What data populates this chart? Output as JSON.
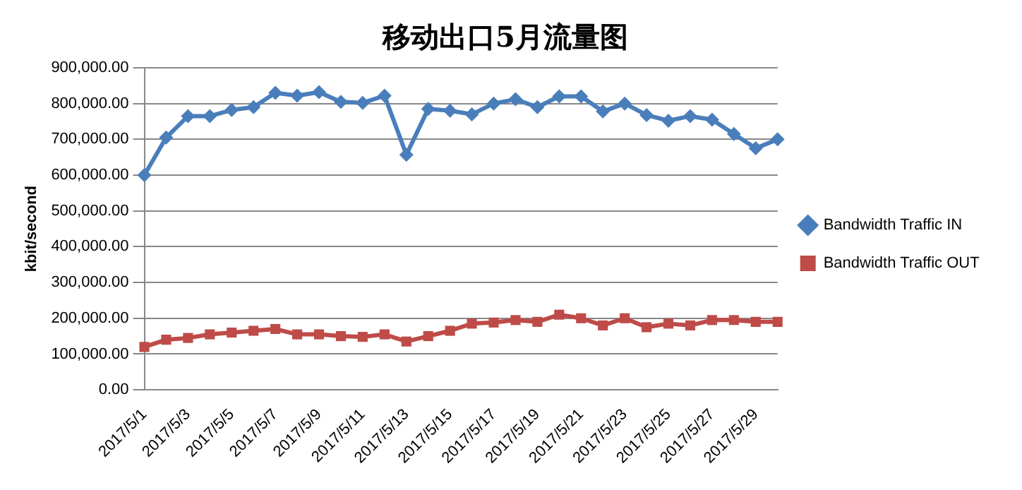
{
  "chart_data": {
    "type": "line",
    "title": "移动出口5月流量图",
    "ylabel": "kbit/second",
    "categories": [
      "2017/5/1",
      null,
      "2017/5/3",
      null,
      "2017/5/5",
      null,
      "2017/5/7",
      null,
      "2017/5/9",
      null,
      "2017/5/11",
      null,
      "2017/5/13",
      null,
      "2017/5/15",
      null,
      "2017/5/17",
      null,
      "2017/5/19",
      null,
      "2017/5/21",
      null,
      "2017/5/23",
      null,
      "2017/5/25",
      null,
      "2017/5/27",
      null,
      "2017/5/29",
      null
    ],
    "series": [
      {
        "name": "Bandwidth Traffic IN",
        "color": "#4a7ebb",
        "marker": "diamond",
        "values": [
          600000,
          705000,
          765000,
          765000,
          782000,
          790000,
          830000,
          822000,
          832000,
          805000,
          802000,
          822000,
          657000,
          785000,
          780000,
          770000,
          800000,
          812000,
          790000,
          820000,
          820000,
          778000,
          800000,
          768000,
          752000,
          765000,
          755000,
          715000,
          675000,
          700000
        ]
      },
      {
        "name": "Bandwidth Traffic OUT",
        "color": "#be4b48",
        "marker": "square",
        "values": [
          120000,
          140000,
          145000,
          155000,
          160000,
          165000,
          170000,
          155000,
          155000,
          150000,
          148000,
          155000,
          135000,
          150000,
          165000,
          185000,
          188000,
          195000,
          190000,
          210000,
          200000,
          180000,
          200000,
          175000,
          185000,
          180000,
          195000,
          195000,
          190000,
          190000
        ]
      }
    ],
    "ylim": [
      0,
      900000
    ],
    "yticks": [
      {
        "value": 0,
        "label": "0.00"
      },
      {
        "value": 100000,
        "label": "100,000.00"
      },
      {
        "value": 200000,
        "label": "200,000.00"
      },
      {
        "value": 300000,
        "label": "300,000.00"
      },
      {
        "value": 400000,
        "label": "400,000.00"
      },
      {
        "value": 500000,
        "label": "500,000.00"
      },
      {
        "value": 600000,
        "label": "600,000.00"
      },
      {
        "value": 700000,
        "label": "700,000.00"
      },
      {
        "value": 800000,
        "label": "800,000.00"
      },
      {
        "value": 900000,
        "label": "900,000.00"
      }
    ],
    "grid": "y",
    "legend": "right"
  }
}
